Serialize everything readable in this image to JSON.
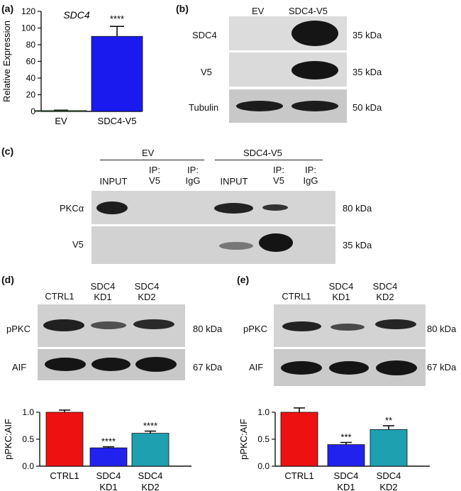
{
  "panel_a": {
    "letter": "(a)",
    "title": "SDC4"
  },
  "panel_b": {
    "letter": "(b)",
    "columns": [
      "EV",
      "SDC4-V5"
    ],
    "rows": [
      {
        "label": "SDC4",
        "kda": "35 kDa"
      },
      {
        "label": "V5",
        "kda": "35 kDa"
      },
      {
        "label": "Tubulin",
        "kda": "50 kDa"
      }
    ]
  },
  "panel_c": {
    "letter": "(c)",
    "groups": [
      "EV",
      "SDC4-V5"
    ],
    "lanes": [
      "INPUT",
      "IP:\nV5",
      "IP:\nIgG",
      "INPUT",
      "IP:\nV5",
      "IP:\nIgG"
    ],
    "rows": [
      {
        "label": "PKCα",
        "kda": "80 kDa"
      },
      {
        "label": "V5",
        "kda": "35 kDa"
      }
    ]
  },
  "panel_d": {
    "letter": "(d)",
    "lanes": [
      "CTRL1",
      "SDC4\nKD1",
      "SDC4\nKD2"
    ],
    "rows": [
      {
        "label": "pPKC",
        "kda": "80 kDa"
      },
      {
        "label": "AIF",
        "kda": "67 kDa"
      }
    ]
  },
  "panel_e": {
    "letter": "(e)",
    "lanes": [
      "CTRL1",
      "SDC4\nKD1",
      "SDC4\nKD2"
    ],
    "rows": [
      {
        "label": "pPKC",
        "kda": "80 kDa"
      },
      {
        "label": "AIF",
        "kda": "67 kDa"
      }
    ]
  },
  "chart_data": [
    {
      "id": "a",
      "type": "bar",
      "title": "SDC4",
      "ylabel": "Relative Expression",
      "categories": [
        "EV",
        "SDC4-V5"
      ],
      "values": [
        1,
        90
      ],
      "errors": [
        0.5,
        12
      ],
      "significance": [
        "",
        "****"
      ],
      "colors": [
        "#6ccf6c",
        "#1a1aee"
      ],
      "ylim": [
        0,
        120
      ],
      "yticks": [
        0,
        20,
        40,
        60,
        80,
        100,
        120
      ]
    },
    {
      "id": "d",
      "type": "bar",
      "ylabel": "pPKC:AIF",
      "categories": [
        "CTRL1",
        "SDC4\nKD1",
        "SDC4\nKD2"
      ],
      "values": [
        1.0,
        0.34,
        0.61
      ],
      "errors": [
        0.04,
        0.02,
        0.04
      ],
      "significance": [
        "",
        "****",
        "****"
      ],
      "colors": [
        "#ee1111",
        "#2222ee",
        "#1fa0b0"
      ],
      "ylim": [
        0,
        1.0
      ],
      "yticks": [
        0.0,
        0.5,
        1.0
      ]
    },
    {
      "id": "e",
      "type": "bar",
      "ylabel": "pPKC:AIF",
      "categories": [
        "CTRL1",
        "SDC4\nKD1",
        "SDC4\nKD2"
      ],
      "values": [
        1.0,
        0.4,
        0.68
      ],
      "errors": [
        0.08,
        0.04,
        0.07
      ],
      "significance": [
        "",
        "***",
        "**"
      ],
      "colors": [
        "#ee1111",
        "#2222ee",
        "#1fa0b0"
      ],
      "ylim": [
        0,
        1.0
      ],
      "yticks": [
        0.0,
        0.5,
        1.0
      ]
    }
  ]
}
